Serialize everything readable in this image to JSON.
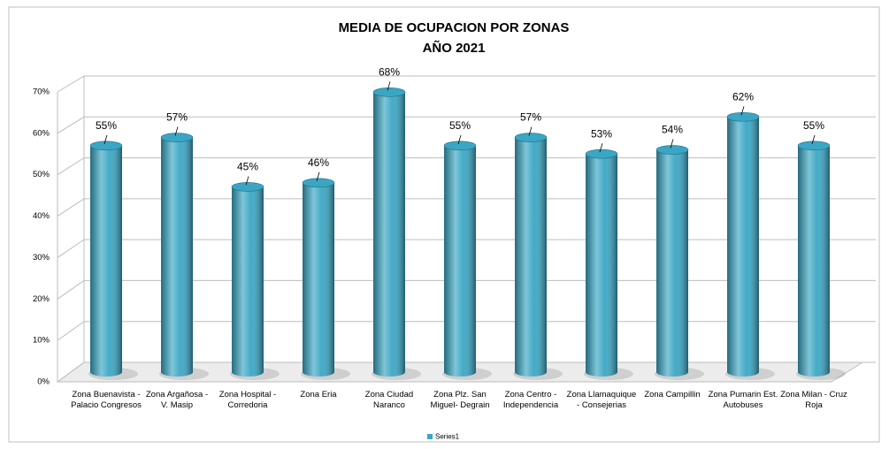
{
  "chart_data": {
    "type": "bar",
    "title": "MEDIA DE OCUPACION POR ZONAS",
    "subtitle": "AÑO 2021",
    "categories": [
      "Zona Buenavista - Palacio Congresos",
      "Zona Argañosa - V. Masip",
      "Zona Hospital - Corredoria",
      "Zona Eria",
      "Zona Ciudad Naranco",
      "Zona Plz. San Miguel- Degrain",
      "Zona Centro - Independencia",
      "Zona Llamaquique - Consejerias",
      "Zona Campillin",
      "Zona Pumarin Est. Autobuses",
      "Zona Milan - Cruz Roja"
    ],
    "series": [
      {
        "name": "Series1",
        "color": "#3aa6c4",
        "values": [
          55,
          57,
          45,
          46,
          68,
          55,
          57,
          53,
          54,
          62,
          55
        ],
        "value_labels": [
          "55%",
          "57%",
          "45%",
          "46%",
          "68%",
          "55%",
          "57%",
          "53%",
          "54%",
          "62%",
          "55%"
        ]
      }
    ],
    "ylim": [
      0,
      70
    ],
    "yticks": [
      {
        "value": 0,
        "label": "0%"
      },
      {
        "value": 10,
        "label": "10%"
      },
      {
        "value": 20,
        "label": "20%"
      },
      {
        "value": 30,
        "label": "30%"
      },
      {
        "value": 40,
        "label": "40%"
      },
      {
        "value": 50,
        "label": "50%"
      },
      {
        "value": 60,
        "label": "60%"
      },
      {
        "value": 70,
        "label": "70%"
      }
    ],
    "grid": true,
    "legend": "bottom"
  }
}
